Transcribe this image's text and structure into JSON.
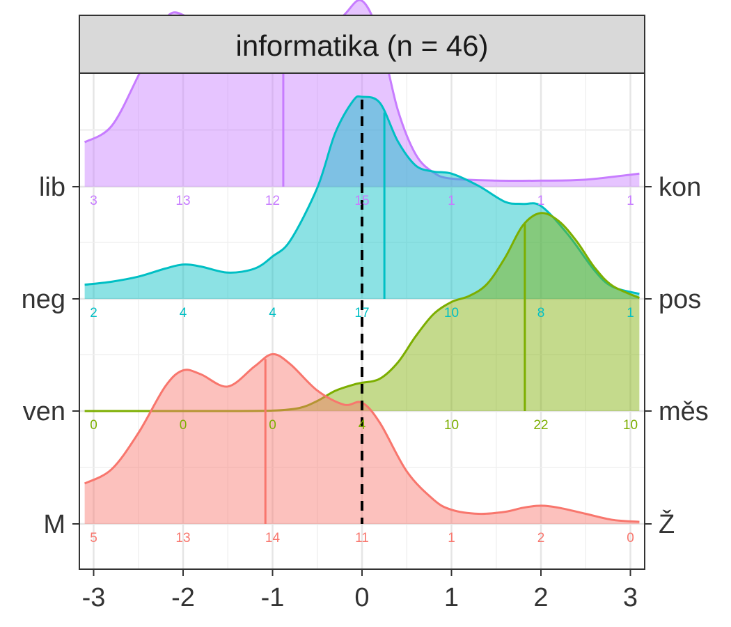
{
  "chart_data": {
    "type": "ridgeline",
    "title": "informatika (n = 46)",
    "xlabel": "",
    "ylabel": "",
    "xlim": [
      -3.1,
      3.1
    ],
    "x_ticks": [
      -3,
      -2,
      -1,
      0,
      1,
      2,
      3
    ],
    "x_tick_labels": [
      "-3",
      "-2",
      "-1",
      "0",
      "1",
      "2",
      "3"
    ],
    "reference_line": 0,
    "count_positions": [
      -3,
      -2,
      -1,
      0,
      1,
      2,
      3
    ],
    "grid": true,
    "legend": "none",
    "series": [
      {
        "left_label": "M",
        "right_label": "Ž",
        "color": "#F8766D",
        "mean": -1.08,
        "counts": [
          5,
          13,
          14,
          11,
          1,
          2,
          0
        ],
        "density_x": [
          -3.1,
          -2.8,
          -2.5,
          -2.2,
          -2.0,
          -1.8,
          -1.5,
          -1.2,
          -1.0,
          -0.8,
          -0.5,
          -0.2,
          0.0,
          0.2,
          0.5,
          0.8,
          1.0,
          1.3,
          1.6,
          1.8,
          2.0,
          2.2,
          2.5,
          2.8,
          3.1
        ],
        "density_y": [
          0.2,
          0.27,
          0.45,
          0.68,
          0.76,
          0.74,
          0.68,
          0.78,
          0.84,
          0.79,
          0.66,
          0.59,
          0.6,
          0.5,
          0.26,
          0.12,
          0.07,
          0.05,
          0.06,
          0.08,
          0.09,
          0.08,
          0.05,
          0.02,
          0.01
        ]
      },
      {
        "left_label": "ven",
        "right_label": "měs",
        "color": "#7CAE00",
        "mean": 1.82,
        "counts": [
          0,
          0,
          0,
          4,
          10,
          22,
          10
        ],
        "density_x": [
          -3.1,
          -2.5,
          -2.0,
          -1.5,
          -1.0,
          -0.7,
          -0.5,
          -0.3,
          -0.1,
          0.0,
          0.2,
          0.4,
          0.6,
          0.8,
          1.0,
          1.2,
          1.4,
          1.6,
          1.8,
          2.0,
          2.2,
          2.4,
          2.6,
          2.8,
          3.1
        ],
        "density_y": [
          0.0,
          0.0,
          0.0,
          0.0,
          0.002,
          0.015,
          0.05,
          0.1,
          0.13,
          0.14,
          0.16,
          0.24,
          0.37,
          0.48,
          0.54,
          0.57,
          0.63,
          0.76,
          0.92,
          0.98,
          0.94,
          0.84,
          0.71,
          0.62,
          0.56
        ]
      },
      {
        "left_label": "neg",
        "right_label": "pos",
        "color": "#00BFC4",
        "mean": 0.25,
        "counts": [
          2,
          4,
          4,
          17,
          10,
          8,
          1
        ],
        "density_x": [
          -3.1,
          -2.8,
          -2.5,
          -2.2,
          -2.0,
          -1.8,
          -1.5,
          -1.2,
          -1.0,
          -0.8,
          -0.5,
          -0.3,
          -0.1,
          0.0,
          0.2,
          0.4,
          0.6,
          0.8,
          1.0,
          1.3,
          1.6,
          1.8,
          2.0,
          2.3,
          2.6,
          2.8,
          3.1
        ],
        "density_y": [
          0.07,
          0.085,
          0.11,
          0.15,
          0.17,
          0.16,
          0.13,
          0.15,
          0.21,
          0.29,
          0.55,
          0.82,
          0.98,
          1.0,
          0.97,
          0.78,
          0.66,
          0.63,
          0.62,
          0.56,
          0.48,
          0.47,
          0.46,
          0.32,
          0.14,
          0.06,
          0.025
        ]
      },
      {
        "left_label": "lib",
        "right_label": "kon",
        "color": "#C77CFF",
        "mean": -0.88,
        "counts": [
          3,
          13,
          12,
          15,
          1,
          1,
          1
        ],
        "density_x": [
          -3.1,
          -2.8,
          -2.5,
          -2.2,
          -2.0,
          -1.8,
          -1.5,
          -1.2,
          -1.0,
          -0.8,
          -0.5,
          -0.2,
          0.0,
          0.2,
          0.4,
          0.6,
          0.8,
          1.0,
          1.5,
          2.0,
          2.5,
          3.1
        ],
        "density_y": [
          0.22,
          0.3,
          0.55,
          0.83,
          0.85,
          0.76,
          0.7,
          0.77,
          0.82,
          0.75,
          0.71,
          0.85,
          0.92,
          0.74,
          0.38,
          0.16,
          0.07,
          0.04,
          0.03,
          0.03,
          0.035,
          0.065
        ]
      }
    ]
  }
}
